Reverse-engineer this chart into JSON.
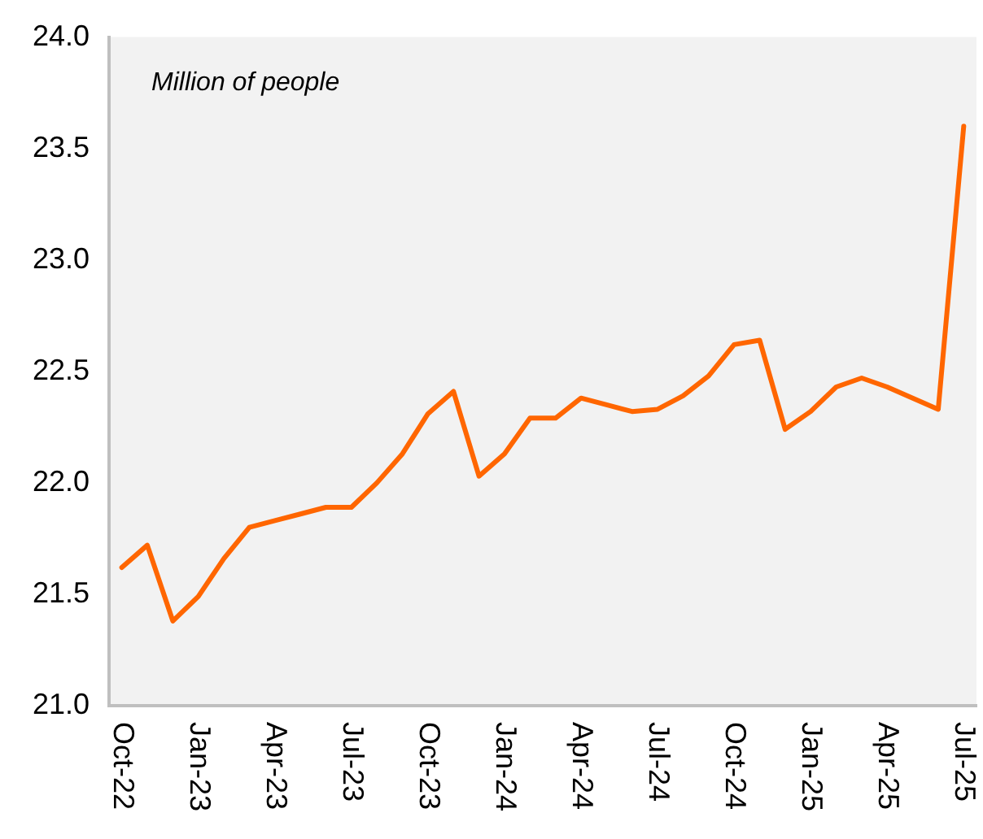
{
  "chart_data": {
    "type": "line",
    "annotations": [
      "Million of people"
    ],
    "categories": [
      "Oct-22",
      null,
      null,
      "Jan-23",
      null,
      null,
      "Apr-23",
      null,
      null,
      "Jul-23",
      null,
      null,
      "Oct-23",
      null,
      null,
      "Jan-24",
      null,
      null,
      "Apr-24",
      null,
      null,
      "Jul-24",
      null,
      null,
      "Oct-24",
      null,
      null,
      "Jan-25",
      null,
      null,
      "Apr-25",
      null,
      null,
      "Jul-25"
    ],
    "series": [
      {
        "color": "#ff6600",
        "values": [
          21.62,
          21.72,
          21.38,
          21.49,
          21.66,
          21.8,
          21.83,
          21.86,
          21.89,
          21.89,
          22.0,
          22.13,
          22.31,
          22.41,
          22.03,
          22.13,
          22.29,
          22.29,
          22.38,
          22.35,
          22.32,
          22.33,
          22.39,
          22.48,
          22.62,
          22.64,
          22.24,
          22.32,
          22.43,
          22.47,
          22.43,
          22.38,
          22.33,
          23.6
        ]
      }
    ],
    "ylim": [
      21,
      24
    ],
    "yticks": [
      {
        "value": 21,
        "label": "21.0"
      },
      {
        "value": 21.5,
        "label": "21.5"
      },
      {
        "value": 22,
        "label": "22.0"
      },
      {
        "value": 22.5,
        "label": "22.5"
      },
      {
        "value": 23,
        "label": "23.0"
      },
      {
        "value": 23.5,
        "label": "23.5"
      },
      {
        "value": 24,
        "label": "24.0"
      }
    ],
    "grid": false,
    "legend": false,
    "marker": "none",
    "line_style": "solid"
  }
}
